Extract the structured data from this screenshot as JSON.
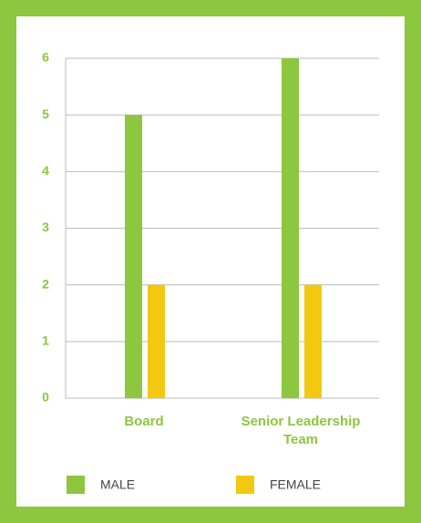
{
  "chart_data": {
    "type": "bar",
    "categories": [
      "Board",
      "Senior Leadership Team"
    ],
    "series": [
      {
        "name": "MALE",
        "color": "#8dc63f",
        "values": [
          5,
          6
        ]
      },
      {
        "name": "FEMALE",
        "color": "#f2c811",
        "values": [
          2,
          2
        ]
      }
    ],
    "ylim": [
      0,
      6
    ],
    "yticks": [
      0,
      1,
      2,
      3,
      4,
      5,
      6
    ],
    "grid": true
  }
}
